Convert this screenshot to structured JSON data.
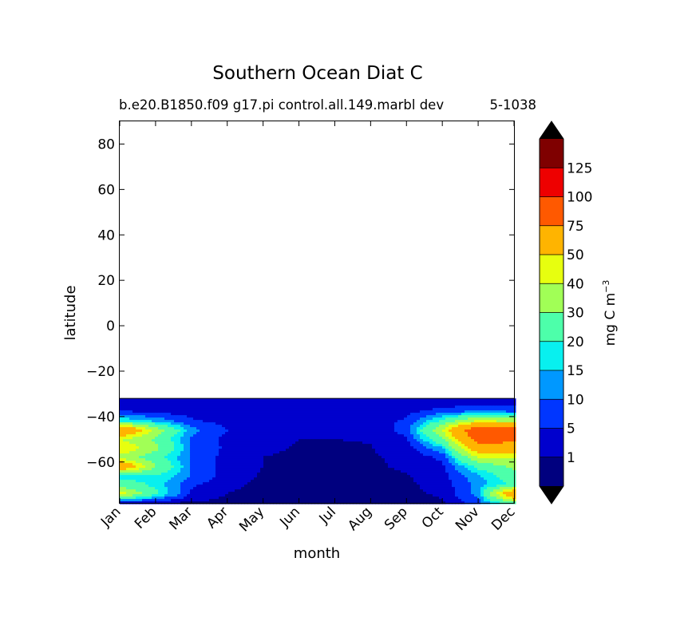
{
  "chart_data": {
    "type": "heatmap",
    "plot_kind": "filled-contour",
    "title": "Southern Ocean Diat C",
    "subtitle_left": "b.e20.B1850.f09 g17.pi control.all.149.marbl dev",
    "subtitle_right": "5-1038",
    "xlabel": "month",
    "ylabel": "latitude",
    "x_categories": [
      "Jan",
      "Feb",
      "Mar",
      "Apr",
      "May",
      "Jun",
      "Jul",
      "Aug",
      "Sep",
      "Oct",
      "Nov",
      "Dec"
    ],
    "ylim": [
      -78,
      90
    ],
    "y_ticks": [
      80,
      60,
      40,
      20,
      0,
      -20,
      -40,
      -60
    ],
    "y_tick_labels": [
      "80",
      "60",
      "40",
      "20",
      "0",
      "−20",
      "−40",
      "−60"
    ],
    "data_top_latitude": -32,
    "colorbar": {
      "label": "mg C m",
      "label_exponent": "−3",
      "levels": [
        0,
        1,
        5,
        10,
        15,
        20,
        30,
        40,
        50,
        75,
        100,
        125,
        150
      ],
      "tick_labels": [
        "1",
        "5",
        "10",
        "15",
        "20",
        "30",
        "40",
        "50",
        "75",
        "100",
        "125"
      ],
      "colors": [
        "#00007f",
        "#0000cd",
        "#0036ff",
        "#0098ff",
        "#08f0ef",
        "#4dffaa",
        "#a1ff56",
        "#e7ff0f",
        "#ffb400",
        "#ff5900",
        "#ee0000",
        "#7f0000"
      ],
      "extend_low_color": "#000000",
      "extend_high_color": "#000000"
    },
    "field": {
      "lat": [
        -78,
        -74,
        -70,
        -66,
        -62,
        -58,
        -54,
        -50,
        -46,
        -42,
        -38,
        -34,
        -32
      ],
      "months": [
        1,
        2,
        3,
        4,
        5,
        6,
        7,
        8,
        9,
        10,
        11,
        12
      ],
      "values": [
        [
          2,
          1.5,
          0.4,
          0.2,
          0.1,
          0.05,
          0.05,
          0.05,
          0.1,
          0.5,
          8,
          28
        ],
        [
          45,
          22,
          4,
          1,
          0.3,
          0.1,
          0.1,
          0.1,
          0.3,
          1.5,
          12,
          70
        ],
        [
          25,
          18,
          6,
          1.5,
          0.5,
          0.2,
          0.2,
          0.2,
          0.5,
          2,
          12,
          22
        ],
        [
          15,
          20,
          10,
          2.5,
          0.7,
          0.3,
          0.3,
          0.3,
          0.8,
          3,
          14,
          26
        ],
        [
          70,
          30,
          10,
          3,
          1,
          0.5,
          0.5,
          0.5,
          1.5,
          4,
          22,
          32
        ],
        [
          35,
          24,
          9,
          3,
          1,
          0.6,
          0.6,
          0.6,
          1.8,
          6,
          40,
          42
        ],
        [
          50,
          32,
          10,
          4,
          1.4,
          0.8,
          0.8,
          0.9,
          2.5,
          14,
          62,
          65
        ],
        [
          40,
          28,
          9,
          3.5,
          1.5,
          1,
          1,
          1.1,
          4,
          28,
          85,
          80
        ],
        [
          75,
          36,
          12,
          5,
          2,
          1.5,
          1.5,
          2,
          7,
          40,
          95,
          85
        ],
        [
          20,
          14,
          6,
          3,
          2,
          1.8,
          1.8,
          2,
          6,
          22,
          42,
          38
        ],
        [
          6,
          4,
          3,
          2.2,
          2,
          2,
          2,
          2,
          3.5,
          8,
          12,
          10
        ],
        [
          1.2,
          1.2,
          1.1,
          1.1,
          1,
          1,
          1,
          1,
          1.2,
          1.5,
          2,
          2
        ],
        [
          1,
          1,
          1,
          1,
          1,
          1,
          1,
          1,
          1,
          1,
          1,
          1
        ]
      ]
    }
  }
}
